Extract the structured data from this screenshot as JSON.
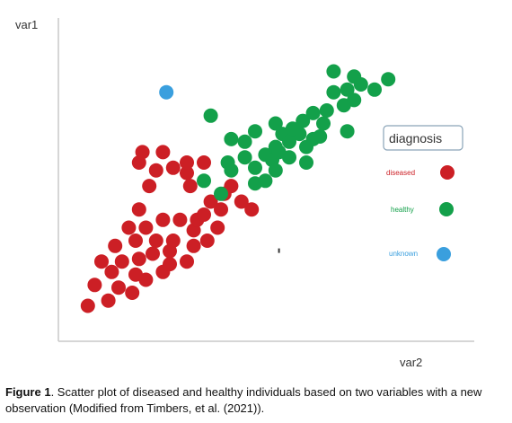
{
  "chart_data": {
    "type": "scatter",
    "xlabel": "var2",
    "ylabel": "var1",
    "xlim": [
      0,
      100
    ],
    "ylim": [
      0,
      100
    ],
    "grid": false,
    "legend_position": "right",
    "legend": {
      "title": "diagnosis",
      "entries": [
        {
          "label": "diseased",
          "color": "#cc1f25"
        },
        {
          "label": "healthy",
          "color": "#13a04a"
        },
        {
          "label": "unknown",
          "color": "#3a9fde"
        }
      ]
    },
    "series": [
      {
        "color": "#cc1f25",
        "points": [
          [
            6,
            5
          ],
          [
            12,
            7
          ],
          [
            8,
            13
          ],
          [
            15,
            12
          ],
          [
            19,
            10
          ],
          [
            13,
            18
          ],
          [
            20,
            17
          ],
          [
            23,
            15
          ],
          [
            28,
            18
          ],
          [
            10,
            22
          ],
          [
            16,
            22
          ],
          [
            21,
            23
          ],
          [
            25,
            25
          ],
          [
            30,
            26
          ],
          [
            30,
            21
          ],
          [
            35,
            22
          ],
          [
            37,
            28
          ],
          [
            14,
            28
          ],
          [
            20,
            30
          ],
          [
            26,
            30
          ],
          [
            31,
            30
          ],
          [
            37,
            34
          ],
          [
            41,
            30
          ],
          [
            44,
            35
          ],
          [
            18,
            35
          ],
          [
            23,
            35
          ],
          [
            28,
            38
          ],
          [
            33,
            38
          ],
          [
            38,
            38
          ],
          [
            40,
            40
          ],
          [
            45,
            42
          ],
          [
            42,
            45
          ],
          [
            46,
            48
          ],
          [
            51,
            45
          ],
          [
            54,
            42
          ],
          [
            48,
            51
          ],
          [
            21,
            42
          ],
          [
            24,
            51
          ],
          [
            21,
            60
          ],
          [
            28,
            64
          ],
          [
            22,
            64
          ],
          [
            26,
            57
          ],
          [
            31,
            58
          ],
          [
            35,
            56
          ],
          [
            36,
            51
          ],
          [
            35,
            60
          ],
          [
            40,
            60
          ]
        ]
      },
      {
        "color": "#13a04a",
        "points": [
          [
            40,
            53
          ],
          [
            45,
            48
          ],
          [
            47,
            60
          ],
          [
            52,
            62
          ],
          [
            55,
            58
          ],
          [
            58,
            63
          ],
          [
            60,
            61
          ],
          [
            55,
            52
          ],
          [
            58,
            53
          ],
          [
            61,
            57
          ],
          [
            61,
            66
          ],
          [
            63,
            71
          ],
          [
            65,
            68
          ],
          [
            68,
            71
          ],
          [
            72,
            69
          ],
          [
            74,
            70
          ],
          [
            69,
            76
          ],
          [
            72,
            79
          ],
          [
            76,
            80
          ],
          [
            78,
            87
          ],
          [
            81,
            82
          ],
          [
            82,
            88
          ],
          [
            84,
            84
          ],
          [
            86,
            90
          ],
          [
            90,
            88
          ],
          [
            94,
            92
          ],
          [
            78,
            95
          ],
          [
            84,
            93
          ],
          [
            82,
            72
          ],
          [
            70,
            66
          ],
          [
            66,
            73
          ],
          [
            65,
            62
          ],
          [
            61,
            75
          ],
          [
            52,
            68
          ],
          [
            48,
            69
          ],
          [
            55,
            72
          ],
          [
            62,
            64
          ],
          [
            75,
            75
          ],
          [
            70,
            60
          ],
          [
            48,
            57
          ],
          [
            42,
            78
          ]
        ]
      },
      {
        "color": "#3a9fde",
        "points": [
          [
            29,
            87
          ]
        ]
      }
    ],
    "annotations": [
      {
        "x": 62,
        "y": 26,
        "marker": "tick"
      }
    ]
  },
  "caption": {
    "label": "Figure 1",
    "text": ". Scatter plot of diseased and healthy individuals based on two variables with a new observation (Modified from Timbers, et al. (2021))."
  }
}
